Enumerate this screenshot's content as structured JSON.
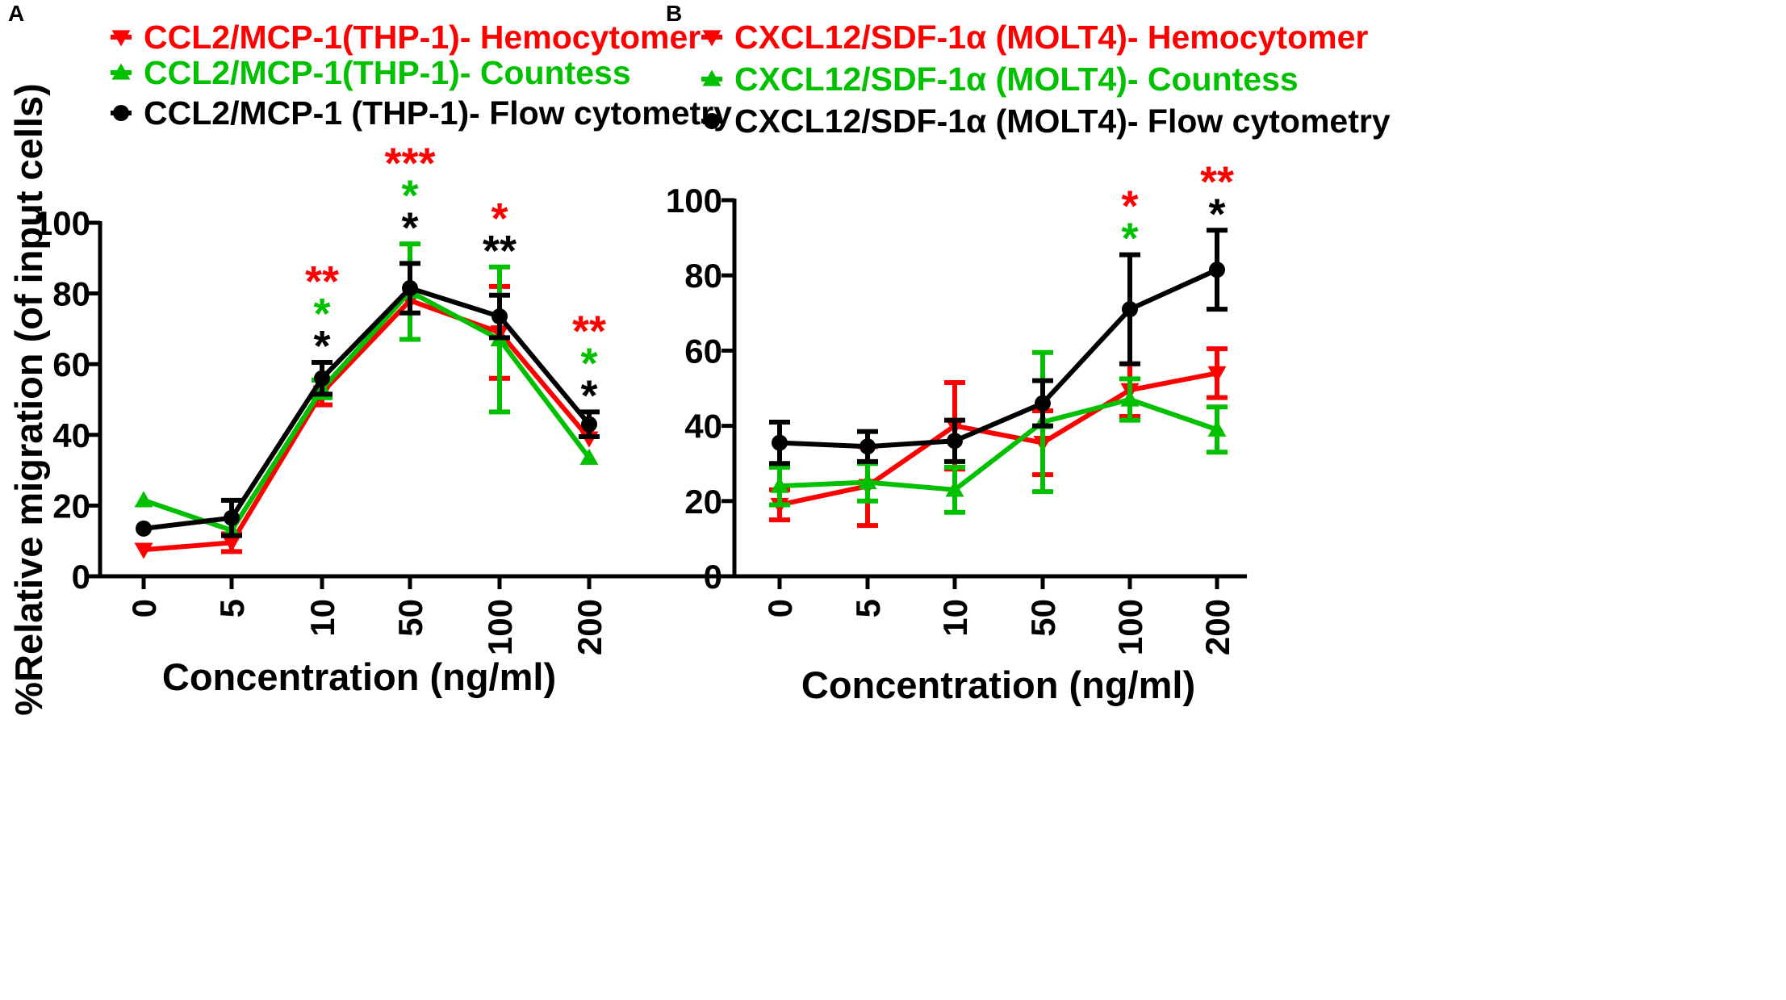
{
  "chart_data": [
    {
      "type": "line",
      "panel_label": "A",
      "xlabel": "Concentration (ng/ml)",
      "ylabel": "%Relative migration (of input cells)",
      "ylim": [
        0,
        100
      ],
      "yticks": [
        "0",
        "20",
        "40",
        "60",
        "80",
        "100"
      ],
      "categories": [
        "0",
        "5",
        "10",
        "50",
        "100",
        "200"
      ],
      "series": [
        {
          "name": "CCL2/MCP-1(THP-1)- Hemocytomer",
          "color": "#ff0000",
          "marker": "triangle-down",
          "values": [
            7.5,
            9.5,
            52,
            78,
            69,
            39
          ],
          "error": [
            0,
            2.5,
            3.5,
            0,
            13,
            0
          ]
        },
        {
          "name": "CCL2/MCP-1(THP-1)- Countess",
          "color": "#00c000",
          "marker": "triangle-up",
          "values": [
            21.5,
            13,
            53,
            80.5,
            67,
            33.5
          ],
          "error": [
            0,
            0,
            2.5,
            13.5,
            20.5,
            0
          ]
        },
        {
          "name": "CCL2/MCP-1 (THP-1)- Flow cytometry",
          "color": "#000000",
          "marker": "circle",
          "values": [
            13.5,
            16.5,
            56,
            81.5,
            73.5,
            43
          ],
          "error": [
            0,
            5,
            4.5,
            7,
            6,
            3.5
          ]
        }
      ],
      "annotations": [
        {
          "x": "10",
          "marks": [
            {
              "text": "**",
              "color": "#ff0000"
            },
            {
              "text": "*",
              "color": "#00c000"
            },
            {
              "text": "*",
              "color": "#000000"
            }
          ]
        },
        {
          "x": "50",
          "marks": [
            {
              "text": "***",
              "color": "#ff0000"
            },
            {
              "text": "*",
              "color": "#00c000"
            },
            {
              "text": "*",
              "color": "#000000"
            }
          ]
        },
        {
          "x": "100",
          "marks": [
            {
              "text": "*",
              "color": "#ff0000"
            },
            {
              "text": "**",
              "color": "#000000"
            }
          ]
        },
        {
          "x": "200",
          "marks": [
            {
              "text": "**",
              "color": "#ff0000"
            },
            {
              "text": "*",
              "color": "#00c000"
            },
            {
              "text": "*",
              "color": "#000000"
            }
          ]
        }
      ]
    },
    {
      "type": "line",
      "panel_label": "B",
      "xlabel": "Concentration (ng/ml)",
      "ylabel": "",
      "ylim": [
        0,
        100
      ],
      "yticks": [
        "0",
        "20",
        "40",
        "60",
        "80",
        "100"
      ],
      "categories": [
        "0",
        "5",
        "10",
        "50",
        "100",
        "200"
      ],
      "series": [
        {
          "name": "CXCL12/SDF-1α (MOLT4)- Hemocytomer",
          "color": "#ff0000",
          "marker": "triangle-down",
          "values": [
            19,
            24,
            40,
            35.5,
            49.5,
            54
          ],
          "error": [
            4,
            10.5,
            11.5,
            8.5,
            7,
            6.5
          ]
        },
        {
          "name": "CXCL12/SDF-1α (MOLT4)- Countess",
          "color": "#00c000",
          "marker": "triangle-up",
          "values": [
            24,
            25,
            23,
            41,
            47,
            39
          ],
          "error": [
            5,
            5,
            6,
            18.5,
            5.5,
            6
          ]
        },
        {
          "name": "CXCL12/SDF-1α (MOLT4)- Flow cytometry",
          "color": "#000000",
          "marker": "circle",
          "values": [
            35.5,
            34.5,
            36,
            46,
            71,
            81.5
          ],
          "error": [
            5.5,
            4,
            5.5,
            6,
            14.5,
            10.5
          ]
        }
      ],
      "annotations": [
        {
          "x": "100",
          "marks": [
            {
              "text": "*",
              "color": "#ff0000"
            },
            {
              "text": "*",
              "color": "#00c000"
            }
          ]
        },
        {
          "x": "200",
          "marks": [
            {
              "text": "**",
              "color": "#ff0000"
            },
            {
              "text": "*",
              "color": "#000000"
            }
          ]
        }
      ]
    }
  ]
}
